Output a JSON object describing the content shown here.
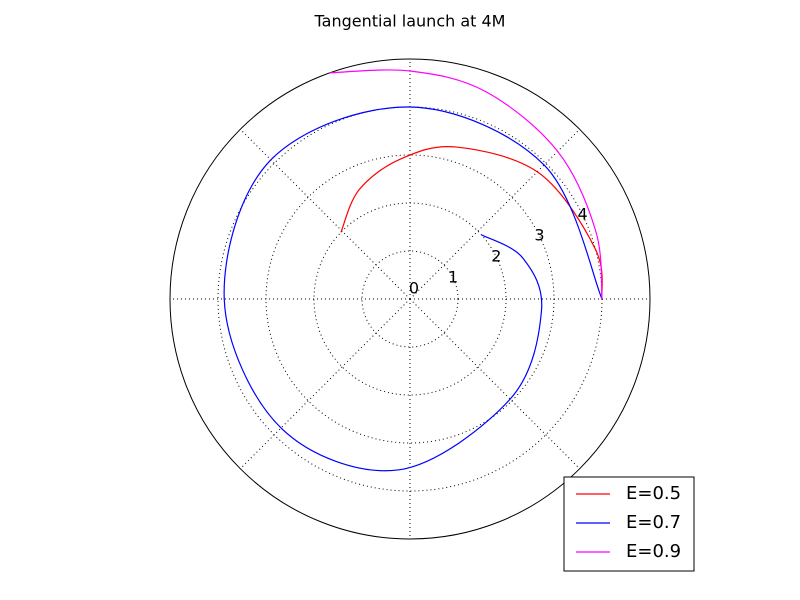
{
  "chart_data": {
    "type": "polar",
    "title": "Tangential launch at 4M",
    "rlim": [
      0,
      5
    ],
    "rticks": [
      0,
      1,
      2,
      3,
      4
    ],
    "thetagrid": [
      0,
      45,
      90,
      135,
      180,
      225,
      270,
      315
    ],
    "grid": true,
    "legend": "lower right",
    "series": [
      {
        "name": "E=0.5",
        "color": "#ff0000",
        "theta": [
          0,
          15,
          44,
          73,
          94,
          115,
          136
        ],
        "values": [
          4.0,
          4.0,
          3.76,
          3.31,
          2.92,
          2.51,
          2.0
        ]
      },
      {
        "name": "E=0.7",
        "color": "#0000ff",
        "theta": [
          0,
          45,
          90,
          135,
          180,
          225,
          266,
          315,
          355,
          380,
          402
        ],
        "values": [
          4.0,
          3.95,
          4.0,
          4.1,
          3.87,
          3.8,
          3.57,
          2.95,
          2.75,
          2.5,
          2.0
        ]
      },
      {
        "name": "E=0.9",
        "color": "#ff00ff",
        "theta": [
          0,
          20,
          45,
          70,
          90,
          109.5
        ],
        "values": [
          4.0,
          4.12,
          4.35,
          4.6,
          4.75,
          5.0
        ]
      }
    ]
  }
}
